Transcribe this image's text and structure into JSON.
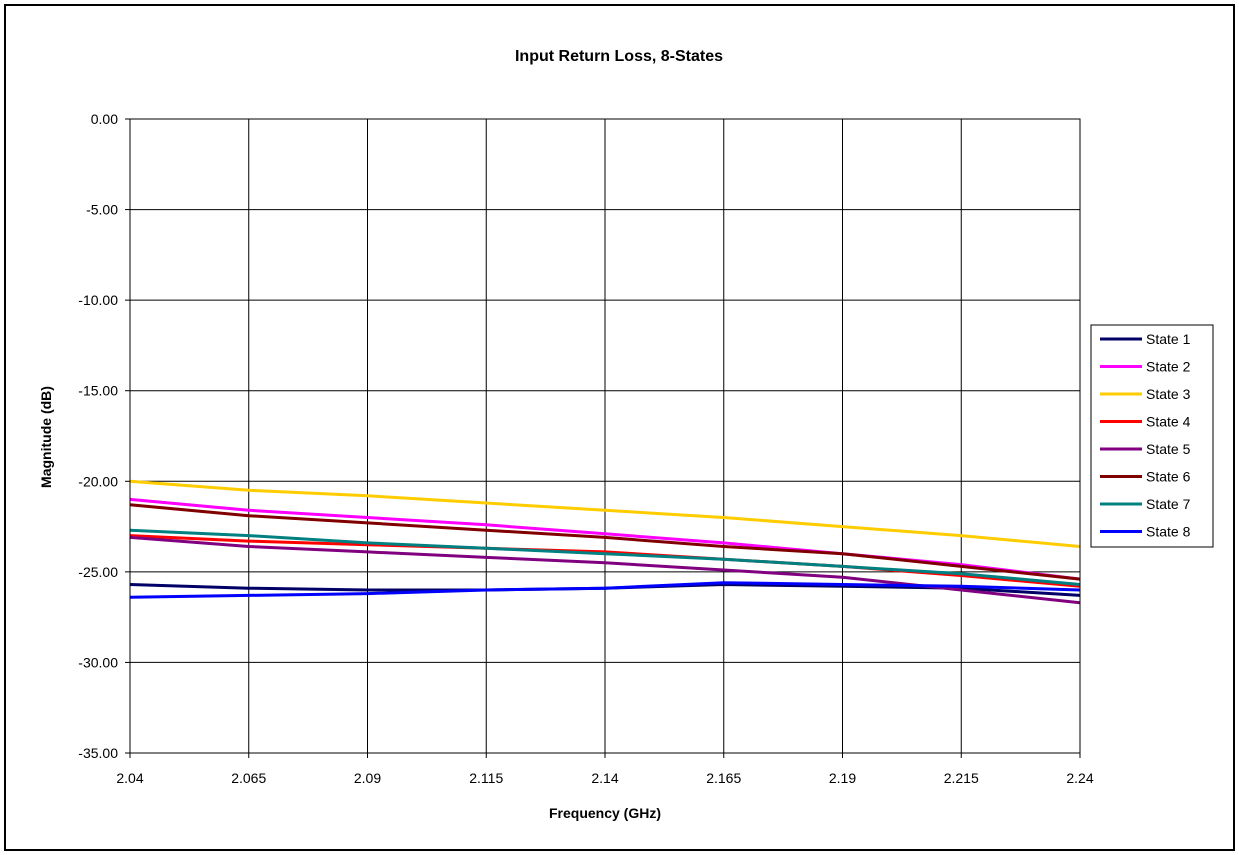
{
  "chart_data": {
    "type": "line",
    "title": "Input Return Loss, 8-States",
    "xlabel": "Frequency (GHz)",
    "ylabel": "Magnitude (dB)",
    "xlim": [
      2.04,
      2.24
    ],
    "ylim": [
      -35,
      0
    ],
    "x_ticks": [
      "2.04",
      "2.065",
      "2.09",
      "2.115",
      "2.14",
      "2.165",
      "2.19",
      "2.215",
      "2.24"
    ],
    "x_tick_values": [
      2.04,
      2.065,
      2.09,
      2.115,
      2.14,
      2.165,
      2.19,
      2.215,
      2.24
    ],
    "y_ticks": [
      "0.00",
      "-5.00",
      "-10.00",
      "-15.00",
      "-20.00",
      "-25.00",
      "-30.00",
      "-35.00"
    ],
    "y_tick_values": [
      0,
      -5,
      -10,
      -15,
      -20,
      -25,
      -30,
      -35
    ],
    "grid": true,
    "legend_position": "right",
    "x": [
      2.04,
      2.065,
      2.09,
      2.115,
      2.14,
      2.165,
      2.19,
      2.215,
      2.24
    ],
    "series": [
      {
        "name": "State 1",
        "color": "#000066",
        "values": [
          -25.7,
          -25.9,
          -26.0,
          -26.0,
          -25.9,
          -25.7,
          -25.8,
          -25.9,
          -26.3
        ]
      },
      {
        "name": "State 2",
        "color": "#ff00ff",
        "values": [
          -21.0,
          -21.6,
          -22.0,
          -22.4,
          -22.9,
          -23.4,
          -24.0,
          -24.6,
          -25.4
        ]
      },
      {
        "name": "State 3",
        "color": "#ffcc00",
        "values": [
          -20.0,
          -20.5,
          -20.8,
          -21.2,
          -21.6,
          -22.0,
          -22.5,
          -23.0,
          -23.6
        ]
      },
      {
        "name": "State 4",
        "color": "#ff0000",
        "values": [
          -23.0,
          -23.3,
          -23.5,
          -23.7,
          -23.9,
          -24.3,
          -24.7,
          -25.2,
          -25.8
        ]
      },
      {
        "name": "State 5",
        "color": "#800080",
        "values": [
          -23.1,
          -23.6,
          -23.9,
          -24.2,
          -24.5,
          -24.9,
          -25.3,
          -26.0,
          -26.7
        ]
      },
      {
        "name": "State 6",
        "color": "#800000",
        "values": [
          -21.3,
          -21.9,
          -22.3,
          -22.7,
          -23.1,
          -23.6,
          -24.0,
          -24.7,
          -25.4
        ]
      },
      {
        "name": "State 7",
        "color": "#008080",
        "values": [
          -22.7,
          -23.0,
          -23.4,
          -23.7,
          -24.0,
          -24.3,
          -24.7,
          -25.1,
          -25.7
        ]
      },
      {
        "name": "State 8",
        "color": "#0000ff",
        "values": [
          -26.4,
          -26.3,
          -26.2,
          -26.0,
          -25.9,
          -25.6,
          -25.7,
          -25.8,
          -26.0
        ]
      }
    ]
  }
}
